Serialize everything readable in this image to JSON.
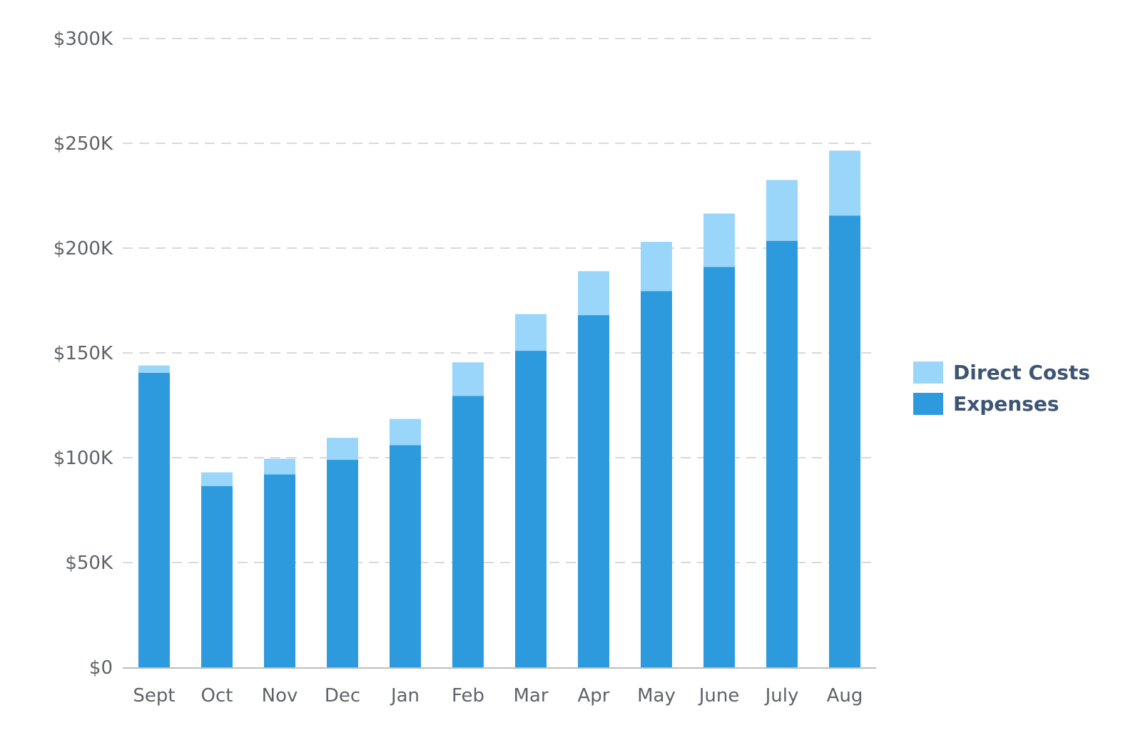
{
  "chart_data": {
    "type": "bar",
    "stacked": true,
    "title": "",
    "xlabel": "",
    "ylabel": "",
    "categories": [
      "Sept",
      "Oct",
      "Nov",
      "Dec",
      "Jan",
      "Feb",
      "Mar",
      "Apr",
      "May",
      "June",
      "July",
      "Aug"
    ],
    "series": [
      {
        "name": "Expenses",
        "color": "#2e9ade",
        "values": [
          140500,
          86500,
          92000,
          99000,
          106000,
          129500,
          151000,
          168000,
          179500,
          191000,
          203500,
          215500
        ]
      },
      {
        "name": "Direct Costs",
        "color": "#9ad5fa",
        "values": [
          3500,
          6500,
          7500,
          10500,
          12500,
          16000,
          17500,
          21000,
          23500,
          25500,
          29000,
          31000
        ]
      }
    ],
    "ylim": [
      0,
      300000
    ],
    "yticks": [
      0,
      50000,
      100000,
      150000,
      200000,
      250000,
      300000
    ],
    "ytick_labels": [
      "$0",
      "$50K",
      "$100K",
      "$150K",
      "$200K",
      "$250K",
      "$300K"
    ],
    "grid": true,
    "legend_position": "right",
    "legend": [
      "Direct Costs",
      "Expenses"
    ]
  },
  "colors": {
    "grid": "#d9d9d9",
    "axis": "#bdbdbd",
    "tick_text": "#5f6368",
    "legend_text": "#3d5573"
  }
}
